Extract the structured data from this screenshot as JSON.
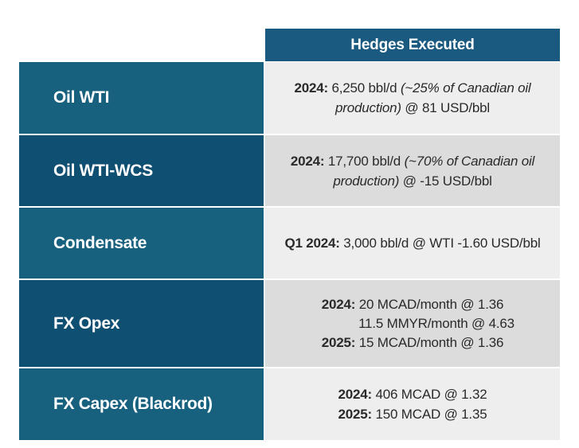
{
  "header": {
    "title": "Hedges Executed"
  },
  "rows": [
    {
      "label": "Oil WTI",
      "lines": [
        {
          "bold": "2024:",
          "plain": " 6,250 bbl/d ",
          "italic": "(~25% of Canadian oil"
        },
        {
          "italic": "production)",
          "plain": " @ 81 USD/bbl"
        }
      ]
    },
    {
      "label": "Oil WTI-WCS",
      "lines": [
        {
          "bold": "2024:",
          "plain": " 17,700 bbl/d ",
          "italic": "(~70% of Canadian oil"
        },
        {
          "italic": "production)",
          "plain": " @ -15 USD/bbl"
        }
      ]
    },
    {
      "label": "Condensate",
      "lines": [
        {
          "bold": "Q1 2024:",
          "plain": " 3,000 bbl/d @ WTI -1.60 USD/bbl"
        }
      ]
    },
    {
      "label": "FX Opex",
      "lines": [
        {
          "bold": "2024:",
          "plain": " 20 MCAD/month @ 1.36"
        },
        {
          "plain": "11.5 MMYR/month @ 4.63"
        },
        {
          "bold": "2025:",
          "plain": " 15 MCAD/month @ 1.36"
        }
      ]
    },
    {
      "label": "FX Capex (Blackrod)",
      "lines": [
        {
          "bold": "2024:",
          "plain": " 406 MCAD @ 1.32"
        },
        {
          "bold": "2025:",
          "plain": " 150 MCAD @ 1.35"
        }
      ]
    }
  ]
}
